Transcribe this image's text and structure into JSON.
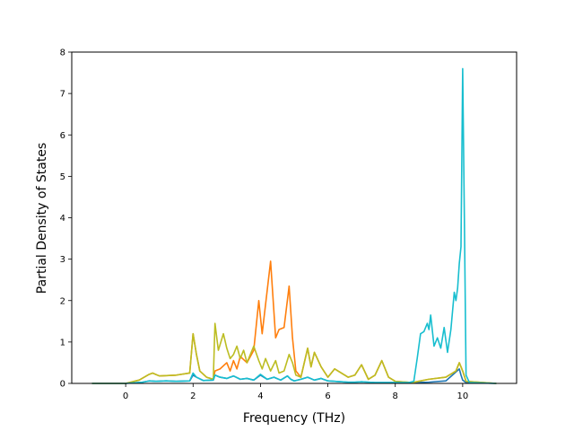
{
  "chart_data": {
    "type": "line",
    "title": "",
    "xlabel": "Frequency (THz)",
    "ylabel": "Partial Density of States",
    "xlim": [
      -1.6,
      11.6
    ],
    "ylim": [
      0,
      8
    ],
    "xticks": [
      0,
      2,
      4,
      6,
      8,
      10
    ],
    "yticks": [
      0,
      1,
      2,
      3,
      4,
      5,
      6,
      7,
      8
    ],
    "grid": false,
    "legend": "none",
    "series": [
      {
        "color": "#1f77b4",
        "x": [
          -1.0,
          0.0,
          0.5,
          0.7,
          0.9,
          1.2,
          1.5,
          1.9,
          2.0,
          2.1,
          2.3,
          2.6,
          2.65,
          2.8,
          3.0,
          3.2,
          3.4,
          3.6,
          3.8,
          4.0,
          4.2,
          4.4,
          4.6,
          4.8,
          4.9,
          5.0,
          5.2,
          5.4,
          5.6,
          5.8,
          6.0,
          6.2,
          6.4,
          6.6,
          6.8,
          7.0,
          7.2,
          7.4,
          7.7,
          8.0,
          8.5,
          9.0,
          9.5,
          9.9,
          9.95,
          10.0,
          10.1,
          11.0
        ],
        "y": [
          0.0,
          0.0,
          0.03,
          0.06,
          0.05,
          0.06,
          0.05,
          0.06,
          0.2,
          0.15,
          0.07,
          0.08,
          0.2,
          0.15,
          0.12,
          0.18,
          0.1,
          0.12,
          0.08,
          0.2,
          0.1,
          0.15,
          0.08,
          0.18,
          0.1,
          0.06,
          0.1,
          0.15,
          0.08,
          0.12,
          0.06,
          0.05,
          0.04,
          0.03,
          0.03,
          0.04,
          0.03,
          0.02,
          0.02,
          0.02,
          0.02,
          0.03,
          0.06,
          0.35,
          0.2,
          0.08,
          0.02,
          0.0
        ]
      },
      {
        "color": "#ff7f0e",
        "x": [
          -1.0,
          0.0,
          0.4,
          0.7,
          0.8,
          1.0,
          1.5,
          1.9,
          2.0,
          2.1,
          2.2,
          2.4,
          2.6,
          2.65,
          2.8,
          3.0,
          3.1,
          3.2,
          3.3,
          3.4,
          3.6,
          3.8,
          3.95,
          4.05,
          4.15,
          4.3,
          4.45,
          4.55,
          4.7,
          4.85,
          4.95,
          5.05,
          5.2,
          5.4,
          5.5,
          5.6,
          5.8,
          6.0,
          6.2,
          6.4,
          6.6,
          6.8,
          7.0,
          7.2,
          7.4,
          7.6,
          7.8,
          8.0,
          8.5,
          9.0,
          9.5,
          9.8,
          9.9,
          10.0,
          10.1,
          11.0
        ],
        "y": [
          0.0,
          0.0,
          0.08,
          0.22,
          0.25,
          0.18,
          0.2,
          0.25,
          1.2,
          0.7,
          0.3,
          0.15,
          0.1,
          0.3,
          0.35,
          0.5,
          0.3,
          0.55,
          0.35,
          0.65,
          0.5,
          0.8,
          2.0,
          1.2,
          1.9,
          2.95,
          1.1,
          1.3,
          1.35,
          2.35,
          1.1,
          0.3,
          0.15,
          0.85,
          0.4,
          0.75,
          0.4,
          0.15,
          0.35,
          0.25,
          0.15,
          0.2,
          0.45,
          0.1,
          0.2,
          0.55,
          0.15,
          0.05,
          0.02,
          0.1,
          0.15,
          0.3,
          0.5,
          0.3,
          0.05,
          0.0
        ]
      },
      {
        "color": "#bcbd22",
        "x": [
          -1.0,
          0.0,
          0.4,
          0.7,
          0.8,
          1.0,
          1.5,
          1.9,
          2.0,
          2.1,
          2.2,
          2.4,
          2.6,
          2.65,
          2.75,
          2.9,
          3.0,
          3.1,
          3.2,
          3.3,
          3.4,
          3.5,
          3.6,
          3.8,
          3.95,
          4.05,
          4.15,
          4.3,
          4.45,
          4.55,
          4.7,
          4.85,
          4.95,
          5.05,
          5.2,
          5.4,
          5.5,
          5.6,
          5.8,
          6.0,
          6.2,
          6.4,
          6.6,
          6.8,
          7.0,
          7.2,
          7.4,
          7.6,
          7.8,
          8.0,
          8.5,
          9.0,
          9.5,
          9.8,
          9.9,
          10.0,
          10.1,
          11.0
        ],
        "y": [
          0.0,
          0.0,
          0.08,
          0.22,
          0.25,
          0.18,
          0.2,
          0.25,
          1.2,
          0.7,
          0.3,
          0.15,
          0.1,
          1.45,
          0.8,
          1.2,
          0.85,
          0.6,
          0.7,
          0.9,
          0.6,
          0.8,
          0.5,
          0.9,
          0.55,
          0.35,
          0.6,
          0.3,
          0.55,
          0.25,
          0.3,
          0.7,
          0.5,
          0.2,
          0.15,
          0.85,
          0.4,
          0.75,
          0.4,
          0.15,
          0.35,
          0.25,
          0.15,
          0.2,
          0.45,
          0.1,
          0.2,
          0.55,
          0.15,
          0.05,
          0.02,
          0.1,
          0.15,
          0.3,
          0.5,
          0.3,
          0.05,
          0.0
        ]
      },
      {
        "color": "#17becf",
        "x": [
          -1.0,
          0.0,
          0.5,
          0.7,
          0.9,
          1.2,
          1.5,
          1.9,
          2.0,
          2.1,
          2.3,
          2.6,
          2.65,
          2.8,
          3.0,
          3.2,
          3.4,
          3.6,
          3.8,
          4.0,
          4.2,
          4.4,
          4.6,
          4.8,
          4.9,
          5.0,
          5.2,
          5.4,
          5.6,
          5.8,
          6.0,
          6.2,
          6.4,
          6.6,
          6.8,
          7.0,
          7.2,
          7.4,
          7.7,
          8.0,
          8.4,
          8.55,
          8.65,
          8.75,
          8.85,
          8.95,
          9.0,
          9.05,
          9.15,
          9.25,
          9.35,
          9.45,
          9.55,
          9.65,
          9.75,
          9.8,
          9.85,
          9.9,
          9.95,
          10.0,
          10.05,
          10.1,
          10.2,
          11.0
        ],
        "y": [
          0.0,
          0.0,
          0.03,
          0.06,
          0.05,
          0.06,
          0.05,
          0.06,
          0.25,
          0.15,
          0.07,
          0.08,
          0.2,
          0.15,
          0.12,
          0.18,
          0.1,
          0.12,
          0.08,
          0.22,
          0.1,
          0.15,
          0.08,
          0.18,
          0.1,
          0.06,
          0.1,
          0.15,
          0.08,
          0.12,
          0.06,
          0.05,
          0.04,
          0.03,
          0.03,
          0.04,
          0.03,
          0.02,
          0.02,
          0.02,
          0.02,
          0.05,
          0.6,
          1.2,
          1.25,
          1.45,
          1.3,
          1.65,
          0.9,
          1.1,
          0.85,
          1.35,
          0.75,
          1.3,
          2.2,
          2.0,
          2.3,
          2.9,
          3.3,
          7.6,
          4.0,
          0.2,
          0.02,
          0.0
        ]
      }
    ]
  }
}
